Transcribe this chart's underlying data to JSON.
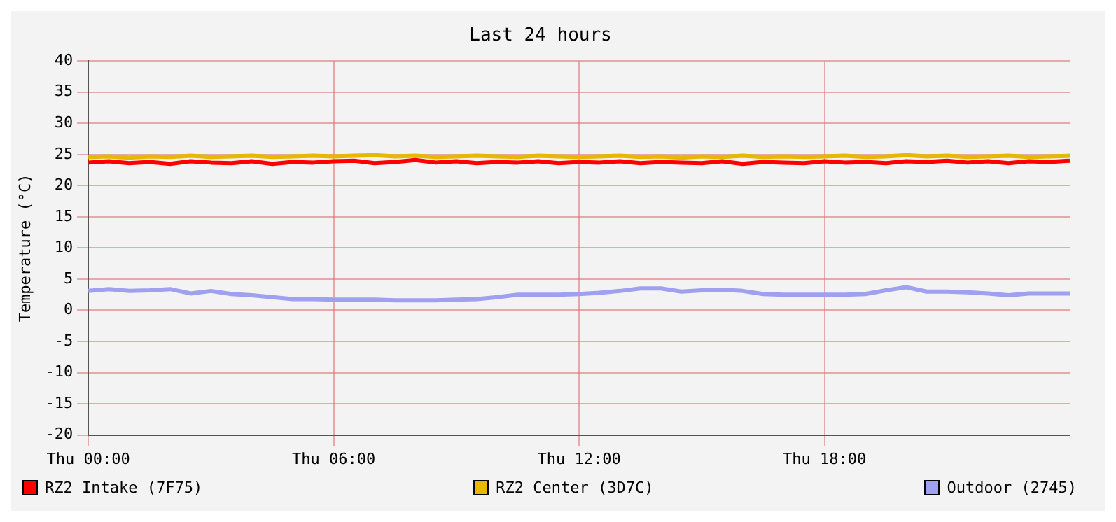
{
  "chart_data": {
    "type": "line",
    "title": "Last 24 hours",
    "ylabel": "Temperature (°C)",
    "categories": [
      "Thu 00:00",
      null,
      null,
      null,
      null,
      null,
      null,
      null,
      null,
      null,
      null,
      null,
      "Thu 06:00",
      null,
      null,
      null,
      null,
      null,
      null,
      null,
      null,
      null,
      null,
      null,
      "Thu 12:00",
      null,
      null,
      null,
      null,
      null,
      null,
      null,
      null,
      null,
      null,
      null,
      "Thu 18:00",
      null,
      null,
      null,
      null,
      null,
      null,
      null,
      null,
      null,
      null,
      null,
      null
    ],
    "ylim": [
      -20,
      40
    ],
    "yticks": [
      -20,
      -15,
      -10,
      -5,
      0,
      5,
      10,
      15,
      20,
      25,
      30,
      35,
      40
    ],
    "grid": true,
    "legend": "bottom",
    "marker": "none",
    "line_style": "solid",
    "series": [
      {
        "name": "RZ2 Intake (7F75)",
        "color": "#ff0000",
        "values": [
          23.7,
          23.9,
          23.6,
          23.8,
          23.5,
          23.9,
          23.7,
          23.6,
          23.9,
          23.5,
          23.8,
          23.7,
          23.9,
          24.0,
          23.6,
          23.8,
          24.1,
          23.7,
          23.9,
          23.6,
          23.8,
          23.7,
          23.9,
          23.6,
          23.8,
          23.7,
          23.9,
          23.6,
          23.8,
          23.7,
          23.6,
          23.9,
          23.5,
          23.8,
          23.7,
          23.6,
          23.9,
          23.7,
          23.8,
          23.6,
          23.9,
          23.8,
          24.0,
          23.7,
          23.9,
          23.6,
          23.9,
          23.8,
          24.0
        ]
      },
      {
        "name": "RZ2 Center (3D7C)",
        "color": "#e6b800",
        "values": [
          24.6,
          24.7,
          24.5,
          24.7,
          24.6,
          24.8,
          24.6,
          24.7,
          24.8,
          24.6,
          24.7,
          24.8,
          24.7,
          24.8,
          24.9,
          24.7,
          24.8,
          24.6,
          24.7,
          24.8,
          24.7,
          24.6,
          24.8,
          24.7,
          24.6,
          24.7,
          24.8,
          24.6,
          24.7,
          24.5,
          24.7,
          24.6,
          24.8,
          24.6,
          24.7,
          24.6,
          24.7,
          24.8,
          24.6,
          24.7,
          24.9,
          24.7,
          24.8,
          24.6,
          24.7,
          24.8,
          24.6,
          24.7,
          24.8
        ]
      },
      {
        "name": "Outdoor (2745)",
        "color": "#a0a0f0",
        "values": [
          3.1,
          3.4,
          3.1,
          3.2,
          3.4,
          2.7,
          3.1,
          2.6,
          2.4,
          2.1,
          1.8,
          1.8,
          1.7,
          1.7,
          1.7,
          1.6,
          1.6,
          1.6,
          1.7,
          1.8,
          2.1,
          2.5,
          2.5,
          2.5,
          2.6,
          2.8,
          3.1,
          3.5,
          3.5,
          3.0,
          3.2,
          3.3,
          3.1,
          2.6,
          2.5,
          2.5,
          2.5,
          2.5,
          2.6,
          3.2,
          3.7,
          3.0,
          3.0,
          2.9,
          2.7,
          2.4,
          2.7,
          2.7,
          2.7
        ]
      }
    ]
  }
}
